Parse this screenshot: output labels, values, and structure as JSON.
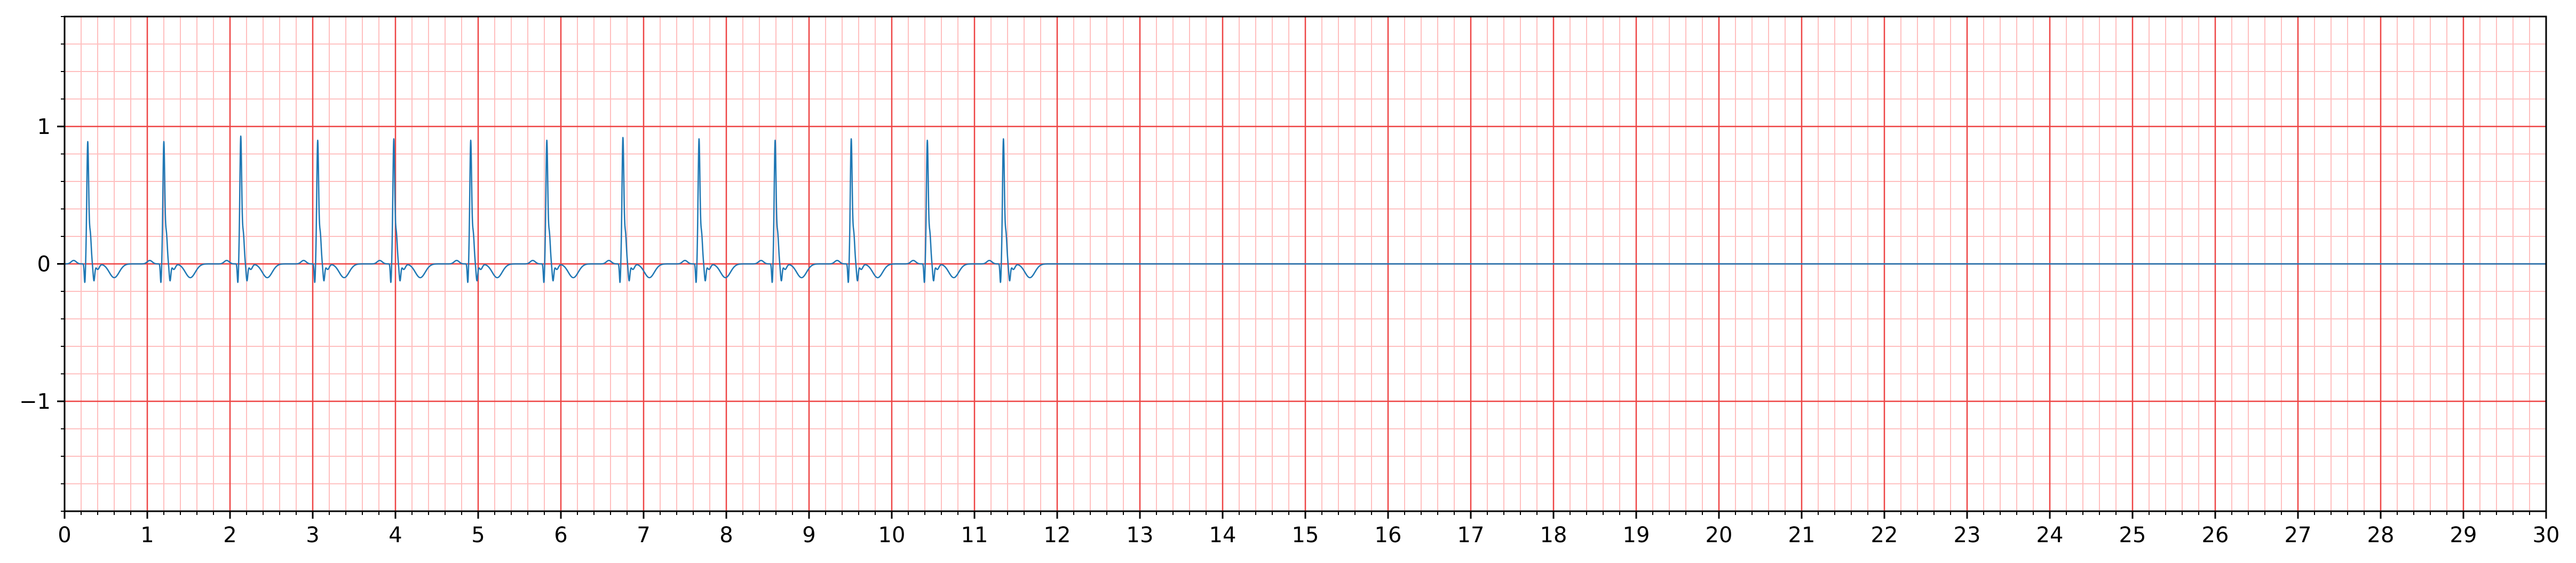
{
  "chart_data": {
    "type": "line",
    "title": "",
    "xlabel": "",
    "ylabel": "",
    "xlim": [
      0,
      30
    ],
    "ylim": [
      -1.8,
      1.8
    ],
    "x_ticks": [
      0,
      1,
      2,
      3,
      4,
      5,
      6,
      7,
      8,
      9,
      10,
      11,
      12,
      13,
      14,
      15,
      16,
      17,
      18,
      19,
      20,
      21,
      22,
      23,
      24,
      25,
      26,
      27,
      28,
      29,
      30
    ],
    "x_tick_labels": [
      "0",
      "1",
      "2",
      "3",
      "4",
      "5",
      "6",
      "7",
      "8",
      "9",
      "10",
      "11",
      "12",
      "13",
      "14",
      "15",
      "16",
      "17",
      "18",
      "19",
      "20",
      "21",
      "22",
      "23",
      "24",
      "25",
      "26",
      "27",
      "28",
      "29",
      "30"
    ],
    "y_ticks": [
      -1,
      0,
      1
    ],
    "y_tick_labels": [
      "−1",
      "0",
      "1"
    ],
    "grid": {
      "major": true,
      "minor": true,
      "major_x_step": 1,
      "minor_x_step": 0.2,
      "major_y_step": 1,
      "minor_y_step": 0.2,
      "major_color": "#ee4444",
      "minor_color": "#ffbfbf"
    },
    "line_color": "#1f77b4",
    "series": [
      {
        "name": "",
        "signal_end": 12.0,
        "flat_value_after_end": 0.0,
        "beat_times": [
          0.28,
          1.2,
          2.13,
          3.06,
          3.98,
          4.91,
          5.83,
          6.75,
          7.67,
          8.59,
          9.51,
          10.43,
          11.35
        ],
        "r_peak_amplitudes": [
          0.88,
          0.88,
          0.92,
          0.89,
          0.9,
          0.89,
          0.89,
          0.91,
          0.9,
          0.89,
          0.9,
          0.89,
          0.9
        ],
        "q_amplitude": -0.14,
        "s_amplitude": -0.12,
        "t_wave_amplitude": -0.1,
        "baseline": 0.0
      }
    ]
  }
}
